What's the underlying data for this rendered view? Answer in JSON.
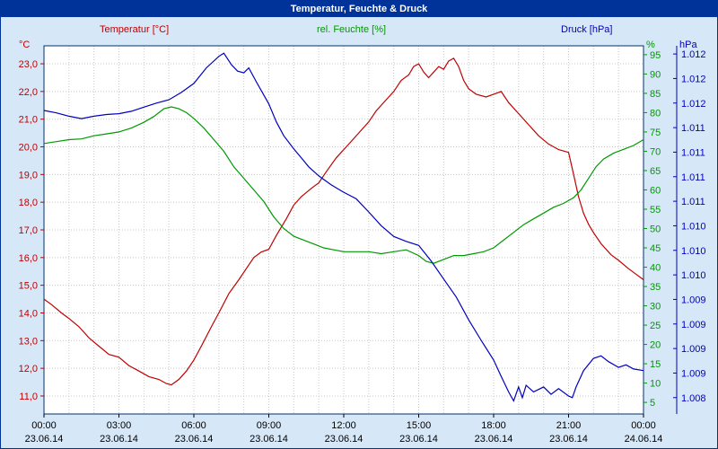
{
  "window": {
    "title": "Temperatur, Feuchte & Druck"
  },
  "legend": {
    "temperature": "Temperatur [°C]",
    "humidity": "rel. Feuchte [%]",
    "pressure": "Druck [hPa]"
  },
  "axes": {
    "temperature": {
      "unit": "°C",
      "color": "#c00000",
      "tick_values": [
        23,
        22,
        21,
        20,
        19,
        18,
        17,
        16,
        15,
        14,
        13,
        12,
        11
      ],
      "tick_labels": [
        "23,0",
        "22,0",
        "21,0",
        "20,0",
        "19,0",
        "18,0",
        "17,0",
        "16,0",
        "15,0",
        "14,0",
        "13,0",
        "12,0",
        "11,0"
      ]
    },
    "humidity": {
      "unit": "%",
      "color": "#009900",
      "tick_values": [
        95,
        90,
        85,
        80,
        75,
        70,
        65,
        60,
        55,
        50,
        45,
        40,
        35,
        30,
        25,
        20,
        15,
        10,
        5
      ],
      "tick_labels": [
        "95",
        "90",
        "85",
        "80",
        "75",
        "70",
        "65",
        "60",
        "55",
        "50",
        "45",
        "40",
        "35",
        "30",
        "25",
        "20",
        "15",
        "10",
        "5"
      ]
    },
    "pressure": {
      "unit": "hPa",
      "color": "#0000c0",
      "tick_values": [
        1.0122,
        1.0119,
        1.0116,
        1.0113,
        1.011,
        1.0107,
        1.0104,
        1.0101,
        1.0098,
        1.0095,
        1.0092,
        1.0089,
        1.0086,
        1.0083,
        1.008
      ],
      "tick_labels": [
        "1.012",
        "1.012",
        "1.012",
        "1.011",
        "1.011",
        "1.011",
        "1.011",
        "1.010",
        "1.010",
        "1.010",
        "1.009",
        "1.009",
        "1.009",
        "1.009",
        "1.008"
      ]
    }
  },
  "x_axis": {
    "hours": [
      0,
      3,
      6,
      9,
      12,
      15,
      18,
      21,
      24
    ],
    "time_labels": [
      "00:00",
      "03:00",
      "06:00",
      "09:00",
      "12:00",
      "15:00",
      "18:00",
      "21:00",
      "00:00"
    ],
    "date_labels": [
      "23.06.14",
      "23.06.14",
      "23.06.14",
      "23.06.14",
      "23.06.14",
      "23.06.14",
      "23.06.14",
      "23.06.14",
      "24.06.14"
    ]
  },
  "colors": {
    "titlebar_bg": "#003399",
    "titlebar_text": "#ffffff",
    "window_bg": "#d6e7f7",
    "plot_bg": "#ffffff",
    "grid": "#c8c8c8",
    "frame": "#003366",
    "x_label": "#000000"
  },
  "chart_data": {
    "type": "line",
    "title": "Temperatur, Feuchte & Druck",
    "x_label": "time (23.06.14 00:00 to 24.06.14 00:00)",
    "x_range": [
      0,
      24
    ],
    "grid": true,
    "legend_position": "top",
    "y_axes": {
      "temperature": {
        "label": "Temperatur [°C]",
        "min": 10.35,
        "max": 23.65
      },
      "humidity": {
        "label": "rel. Feuchte [%]",
        "min": 2,
        "max": 97.3
      },
      "pressure": {
        "label": "Druck [hPa]",
        "min": 1.0078,
        "max": 1.0123
      }
    },
    "series": [
      {
        "name": "Temperatur [°C]",
        "axis": "temperature",
        "color": "#c00000",
        "points": [
          [
            0,
            14.5
          ],
          [
            0.3,
            14.3
          ],
          [
            0.7,
            14.0
          ],
          [
            1,
            13.8
          ],
          [
            1.4,
            13.5
          ],
          [
            1.8,
            13.1
          ],
          [
            2.2,
            12.8
          ],
          [
            2.6,
            12.5
          ],
          [
            3,
            12.4
          ],
          [
            3.4,
            12.1
          ],
          [
            3.8,
            11.9
          ],
          [
            4.2,
            11.7
          ],
          [
            4.6,
            11.6
          ],
          [
            4.9,
            11.45
          ],
          [
            5.1,
            11.4
          ],
          [
            5.4,
            11.6
          ],
          [
            5.7,
            11.9
          ],
          [
            6,
            12.3
          ],
          [
            6.3,
            12.8
          ],
          [
            6.7,
            13.5
          ],
          [
            7,
            14.0
          ],
          [
            7.4,
            14.7
          ],
          [
            7.8,
            15.2
          ],
          [
            8.1,
            15.6
          ],
          [
            8.4,
            16.0
          ],
          [
            8.7,
            16.2
          ],
          [
            9,
            16.3
          ],
          [
            9.3,
            16.8
          ],
          [
            9.7,
            17.4
          ],
          [
            10,
            17.9
          ],
          [
            10.3,
            18.2
          ],
          [
            10.7,
            18.5
          ],
          [
            11,
            18.7
          ],
          [
            11.3,
            19.1
          ],
          [
            11.7,
            19.6
          ],
          [
            12,
            19.9
          ],
          [
            12.3,
            20.2
          ],
          [
            12.7,
            20.6
          ],
          [
            13,
            20.9
          ],
          [
            13.3,
            21.3
          ],
          [
            13.7,
            21.7
          ],
          [
            14,
            22.0
          ],
          [
            14.3,
            22.4
          ],
          [
            14.6,
            22.6
          ],
          [
            14.8,
            22.9
          ],
          [
            15,
            23.0
          ],
          [
            15.2,
            22.7
          ],
          [
            15.4,
            22.5
          ],
          [
            15.6,
            22.7
          ],
          [
            15.8,
            22.9
          ],
          [
            16,
            22.8
          ],
          [
            16.2,
            23.1
          ],
          [
            16.4,
            23.2
          ],
          [
            16.6,
            22.9
          ],
          [
            16.8,
            22.4
          ],
          [
            17,
            22.1
          ],
          [
            17.3,
            21.9
          ],
          [
            17.7,
            21.8
          ],
          [
            18,
            21.9
          ],
          [
            18.3,
            22.0
          ],
          [
            18.6,
            21.6
          ],
          [
            19,
            21.2
          ],
          [
            19.4,
            20.8
          ],
          [
            19.8,
            20.4
          ],
          [
            20.2,
            20.1
          ],
          [
            20.6,
            19.9
          ],
          [
            21,
            19.8
          ],
          [
            21.2,
            19.0
          ],
          [
            21.4,
            18.2
          ],
          [
            21.6,
            17.6
          ],
          [
            21.8,
            17.2
          ],
          [
            22,
            16.9
          ],
          [
            22.3,
            16.5
          ],
          [
            22.7,
            16.1
          ],
          [
            23,
            15.9
          ],
          [
            23.4,
            15.6
          ],
          [
            23.7,
            15.4
          ],
          [
            24,
            15.2
          ]
        ]
      },
      {
        "name": "rel. Feuchte [%]",
        "axis": "humidity",
        "color": "#009900",
        "points": [
          [
            0,
            72
          ],
          [
            0.5,
            72.5
          ],
          [
            1,
            73
          ],
          [
            1.5,
            73.2
          ],
          [
            2,
            74
          ],
          [
            2.5,
            74.5
          ],
          [
            3,
            75
          ],
          [
            3.5,
            76
          ],
          [
            4,
            77.5
          ],
          [
            4.4,
            79
          ],
          [
            4.8,
            81
          ],
          [
            5.1,
            81.5
          ],
          [
            5.4,
            81
          ],
          [
            5.7,
            80
          ],
          [
            6,
            78.5
          ],
          [
            6.4,
            76
          ],
          [
            6.8,
            73
          ],
          [
            7.2,
            70
          ],
          [
            7.6,
            66
          ],
          [
            8,
            63
          ],
          [
            8.4,
            60
          ],
          [
            8.8,
            57
          ],
          [
            9.2,
            53
          ],
          [
            9.6,
            50
          ],
          [
            10,
            48
          ],
          [
            10.4,
            47
          ],
          [
            10.8,
            46
          ],
          [
            11.2,
            45
          ],
          [
            11.6,
            44.5
          ],
          [
            12,
            44
          ],
          [
            12.5,
            44
          ],
          [
            13,
            44
          ],
          [
            13.5,
            43.5
          ],
          [
            14,
            44
          ],
          [
            14.5,
            44.5
          ],
          [
            15,
            43
          ],
          [
            15.3,
            41.5
          ],
          [
            15.6,
            41
          ],
          [
            16,
            42
          ],
          [
            16.4,
            43
          ],
          [
            16.8,
            43
          ],
          [
            17.2,
            43.5
          ],
          [
            17.6,
            44
          ],
          [
            18,
            45
          ],
          [
            18.4,
            47
          ],
          [
            18.8,
            49
          ],
          [
            19.2,
            51
          ],
          [
            19.6,
            52.5
          ],
          [
            20,
            54
          ],
          [
            20.4,
            55.5
          ],
          [
            20.8,
            56.5
          ],
          [
            21.2,
            58
          ],
          [
            21.5,
            60
          ],
          [
            21.8,
            63
          ],
          [
            22.1,
            66
          ],
          [
            22.4,
            68
          ],
          [
            22.8,
            69.5
          ],
          [
            23.2,
            70.5
          ],
          [
            23.6,
            71.5
          ],
          [
            24,
            73
          ]
        ]
      },
      {
        "name": "Druck [hPa]",
        "axis": "pressure",
        "color": "#0000c0",
        "points": [
          [
            0,
            1.01151
          ],
          [
            0.5,
            1.01148
          ],
          [
            1,
            1.01144
          ],
          [
            1.5,
            1.01141
          ],
          [
            2,
            1.01144
          ],
          [
            2.5,
            1.01146
          ],
          [
            3,
            1.01147
          ],
          [
            3.5,
            1.0115
          ],
          [
            4,
            1.01155
          ],
          [
            4.5,
            1.0116
          ],
          [
            5,
            1.01164
          ],
          [
            5.5,
            1.01173
          ],
          [
            6,
            1.01184
          ],
          [
            6.5,
            1.01203
          ],
          [
            7,
            1.01217
          ],
          [
            7.2,
            1.01221
          ],
          [
            7.5,
            1.01207
          ],
          [
            7.75,
            1.01199
          ],
          [
            8,
            1.01197
          ],
          [
            8.2,
            1.01203
          ],
          [
            8.5,
            1.01186
          ],
          [
            9,
            1.01159
          ],
          [
            9.3,
            1.01137
          ],
          [
            9.6,
            1.0112
          ],
          [
            10,
            1.01104
          ],
          [
            10.3,
            1.01093
          ],
          [
            10.6,
            1.01082
          ],
          [
            11,
            1.01071
          ],
          [
            11.5,
            1.0106
          ],
          [
            12,
            1.01051
          ],
          [
            12.5,
            1.01043
          ],
          [
            13,
            1.01027
          ],
          [
            13.5,
            1.0101
          ],
          [
            14,
            1.00997
          ],
          [
            14.5,
            1.00991
          ],
          [
            15,
            1.00986
          ],
          [
            15.5,
            1.00967
          ],
          [
            16,
            1.00945
          ],
          [
            16.5,
            1.00923
          ],
          [
            17,
            1.00895
          ],
          [
            17.5,
            1.0087
          ],
          [
            18,
            1.00846
          ],
          [
            18.3,
            1.00826
          ],
          [
            18.6,
            1.00807
          ],
          [
            18.8,
            1.00796
          ],
          [
            19,
            1.00813
          ],
          [
            19.15,
            1.008
          ],
          [
            19.3,
            1.00815
          ],
          [
            19.6,
            1.00807
          ],
          [
            20,
            1.00813
          ],
          [
            20.3,
            1.00804
          ],
          [
            20.6,
            1.00811
          ],
          [
            21,
            1.00802
          ],
          [
            21.15,
            1.008
          ],
          [
            21.3,
            1.00813
          ],
          [
            21.6,
            1.00833
          ],
          [
            22,
            1.00848
          ],
          [
            22.3,
            1.00851
          ],
          [
            22.6,
            1.00844
          ],
          [
            23,
            1.00837
          ],
          [
            23.3,
            1.0084
          ],
          [
            23.6,
            1.00835
          ],
          [
            24,
            1.00833
          ]
        ]
      }
    ]
  }
}
